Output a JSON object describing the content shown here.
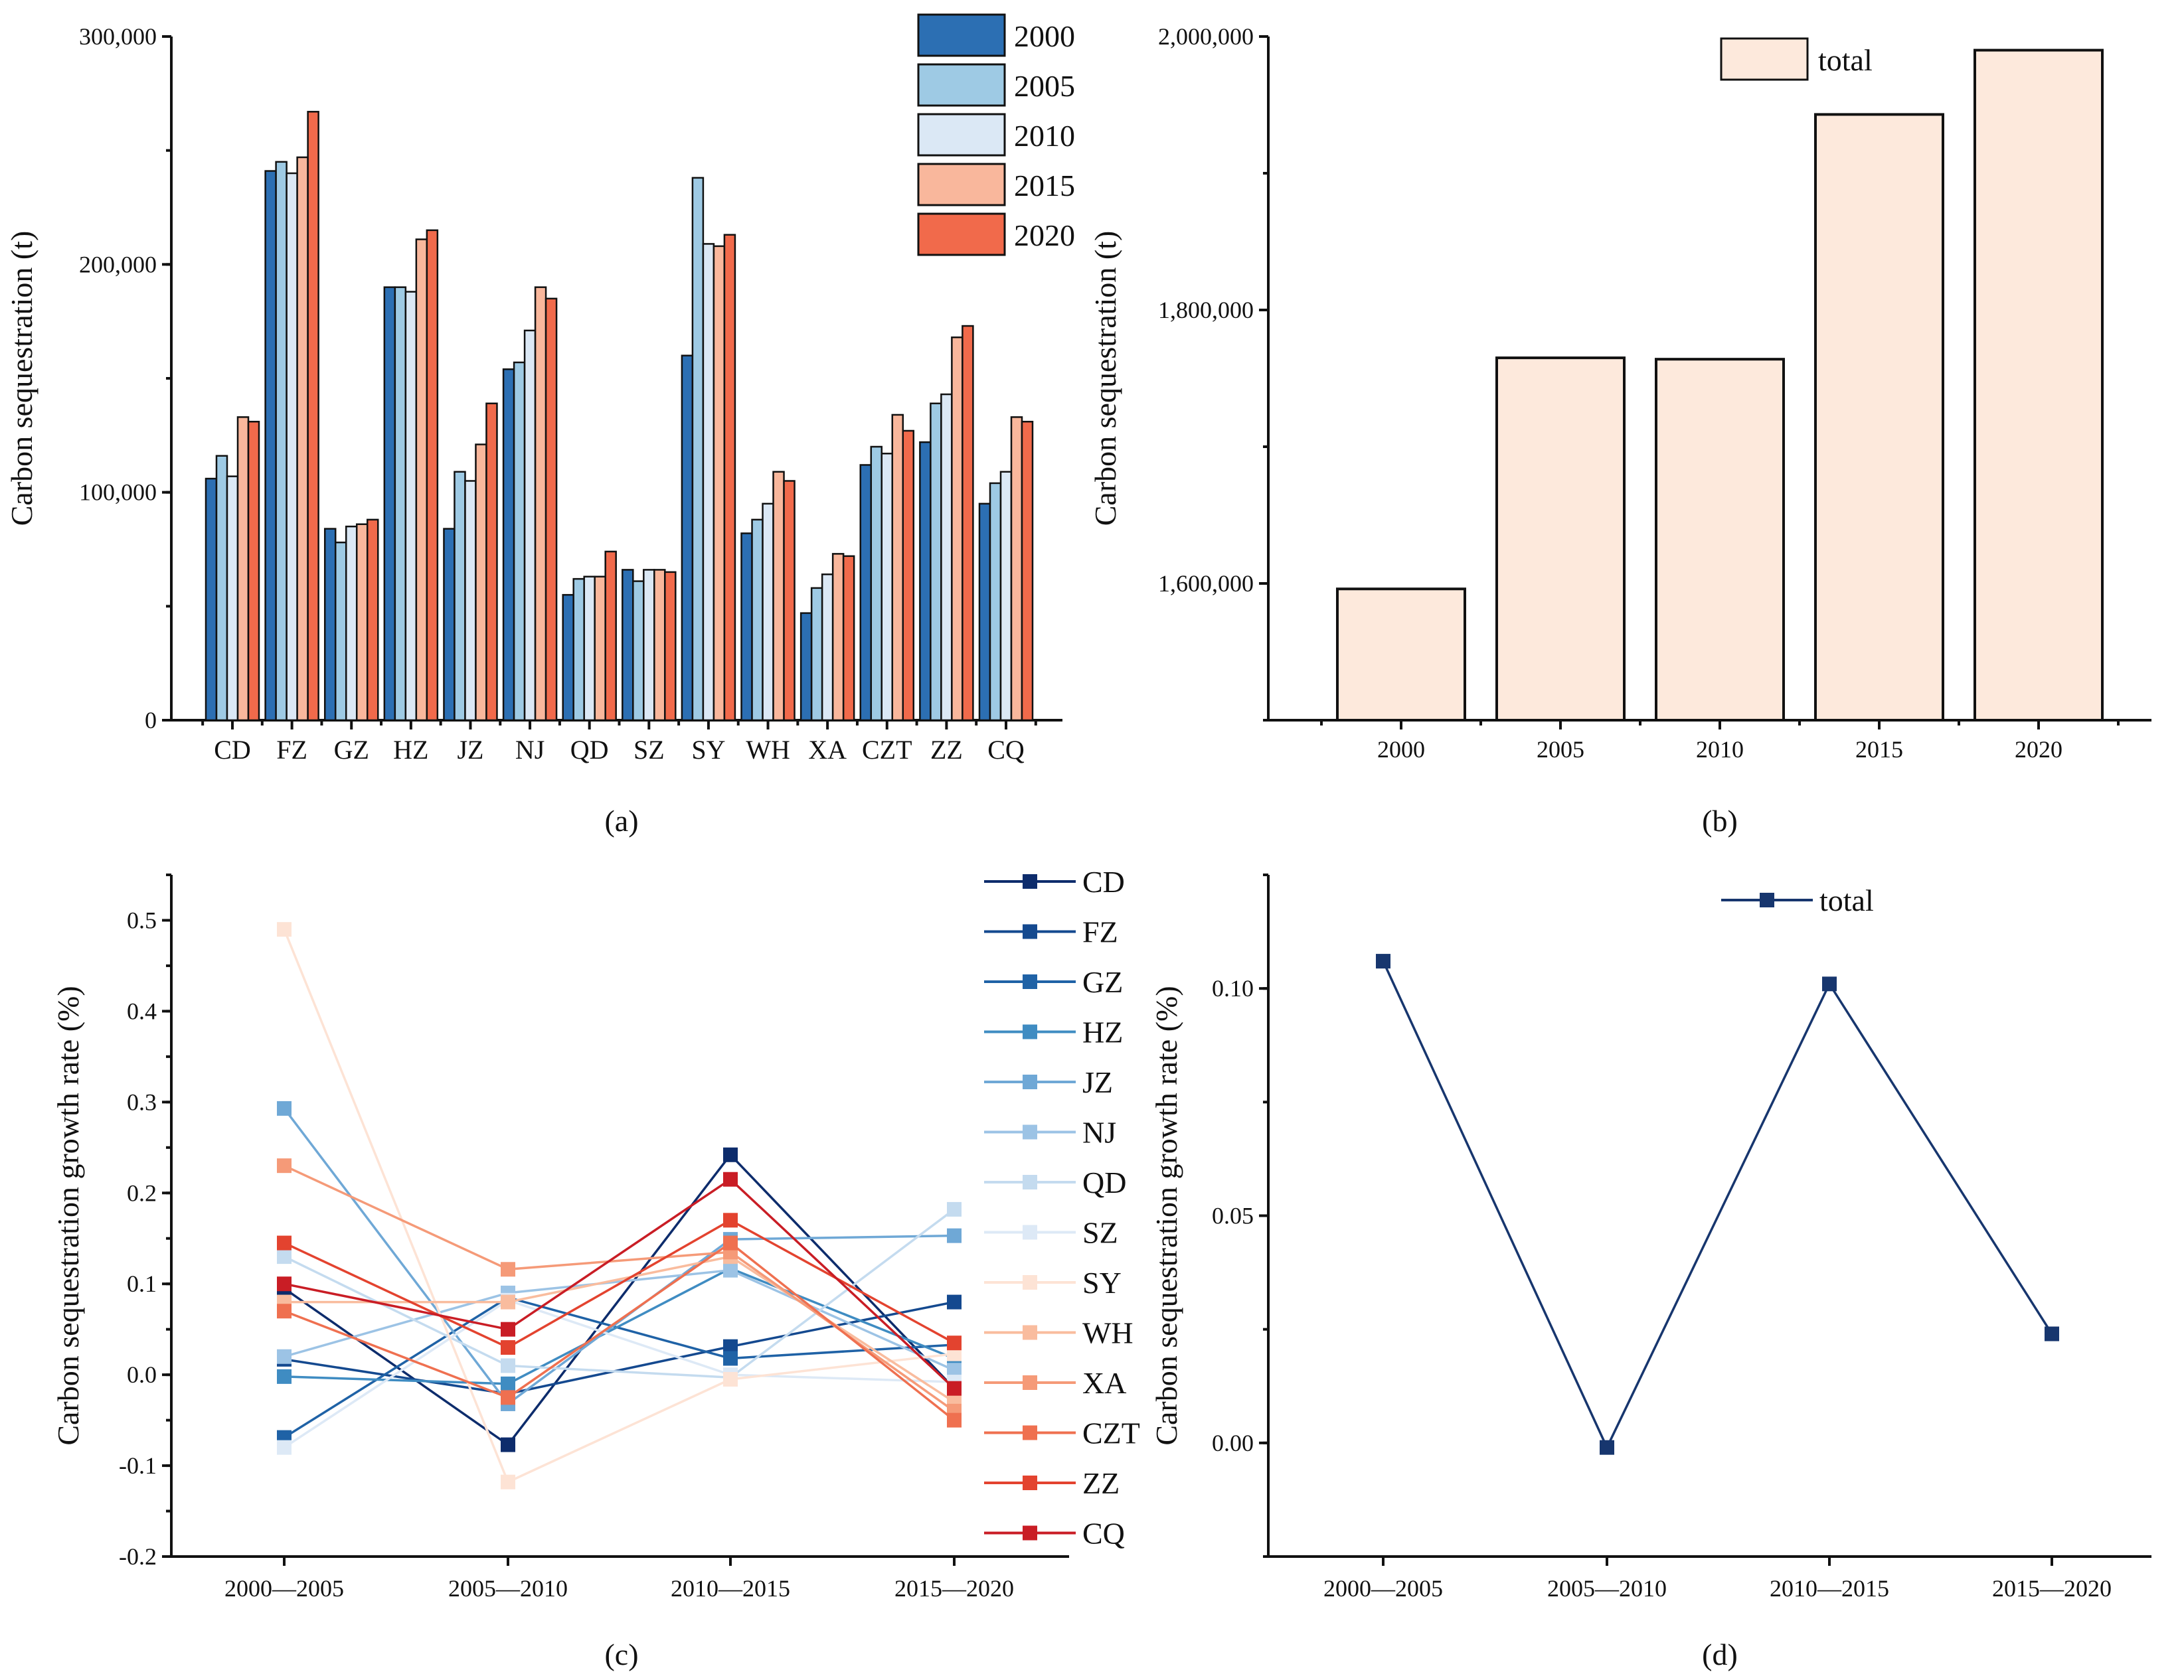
{
  "chart_data": [
    {
      "panel": "(a)",
      "type": "bar",
      "ylabel": "Carbon sequestration (t)",
      "xlabel": "",
      "ylim": [
        0,
        300000
      ],
      "yticks": [
        0,
        100000,
        200000,
        300000
      ],
      "ytick_labels": [
        "0",
        "100,000",
        "200,000",
        "300,000"
      ],
      "categories": [
        "CD",
        "FZ",
        "GZ",
        "HZ",
        "JZ",
        "NJ",
        "QD",
        "SZ",
        "SY",
        "WH",
        "XA",
        "CZT",
        "ZZ",
        "CQ"
      ],
      "series": [
        {
          "name": "2000",
          "color": "#2c6fb3",
          "values": [
            106000,
            241000,
            84000,
            190000,
            84000,
            154000,
            55000,
            66000,
            160000,
            82000,
            47000,
            112000,
            122000,
            95000
          ]
        },
        {
          "name": "2005",
          "color": "#9ecae4",
          "values": [
            116000,
            245000,
            78000,
            190000,
            109000,
            157000,
            62000,
            61000,
            238000,
            88000,
            58000,
            120000,
            139000,
            104000
          ]
        },
        {
          "name": "2010",
          "color": "#dbe8f5",
          "values": [
            107000,
            240000,
            85000,
            188000,
            105000,
            171000,
            63000,
            66000,
            209000,
            95000,
            64000,
            117000,
            143000,
            109000
          ]
        },
        {
          "name": "2015",
          "color": "#f9b79c",
          "values": [
            133000,
            247000,
            86000,
            211000,
            121000,
            190000,
            63000,
            66000,
            208000,
            109000,
            73000,
            134000,
            168000,
            133000
          ]
        },
        {
          "name": "2020",
          "color": "#f16a4b",
          "values": [
            131000,
            267000,
            88000,
            215000,
            139000,
            185000,
            74000,
            65000,
            213000,
            105000,
            72000,
            127000,
            173000,
            131000
          ]
        }
      ],
      "legend": "top-right"
    },
    {
      "panel": "(b)",
      "type": "bar",
      "ylabel": "Carbon sequestration (t)",
      "xlabel": "",
      "ylim": [
        1500000,
        2000000
      ],
      "yticks": [
        1600000,
        1800000,
        2000000
      ],
      "ytick_labels": [
        "1,600,000",
        "1,800,000",
        "2,000,000"
      ],
      "categories": [
        "2000",
        "2005",
        "2010",
        "2015",
        "2020"
      ],
      "series": [
        {
          "name": "total",
          "color": "#fde9dc",
          "values": [
            1596000,
            1765000,
            1764000,
            1943000,
            1990000
          ]
        }
      ],
      "legend": "top-right"
    },
    {
      "panel": "(c)",
      "type": "line",
      "ylabel": "Carbon sequestration growth rate (%)",
      "xlabel": "",
      "ylim": [
        -0.2,
        0.55
      ],
      "yticks": [
        -0.2,
        -0.1,
        0.0,
        0.1,
        0.2,
        0.3,
        0.4,
        0.5
      ],
      "ytick_labels": [
        "-0.2",
        "-0.1",
        "0.0",
        "0.1",
        "0.2",
        "0.3",
        "0.4",
        "0.5"
      ],
      "categories": [
        "2000—2005",
        "2005—2010",
        "2010—2015",
        "2015—2020"
      ],
      "series": [
        {
          "name": "CD",
          "color": "#0d2c6c",
          "values": [
            0.095,
            -0.077,
            0.242,
            -0.015
          ]
        },
        {
          "name": "FZ",
          "color": "#14498f",
          "values": [
            0.017,
            -0.021,
            0.031,
            0.08
          ]
        },
        {
          "name": "GZ",
          "color": "#1f62a6",
          "values": [
            -0.069,
            0.085,
            0.018,
            0.033
          ]
        },
        {
          "name": "HZ",
          "color": "#3f8cc2",
          "values": [
            -0.002,
            -0.01,
            0.117,
            0.018
          ]
        },
        {
          "name": "JZ",
          "color": "#6fa8d6",
          "values": [
            0.293,
            -0.032,
            0.149,
            0.153
          ]
        },
        {
          "name": "NJ",
          "color": "#9cc3e5",
          "values": [
            0.02,
            0.09,
            0.115,
            0.005
          ]
        },
        {
          "name": "QD",
          "color": "#c4dbef",
          "values": [
            0.13,
            0.01,
            -0.003,
            0.182
          ]
        },
        {
          "name": "SZ",
          "color": "#dde9f6",
          "values": [
            -0.08,
            0.082,
            0.0,
            -0.008
          ]
        },
        {
          "name": "SY",
          "color": "#fde3d5",
          "values": [
            0.49,
            -0.118,
            -0.005,
            0.023
          ]
        },
        {
          "name": "WH",
          "color": "#f9bc9e",
          "values": [
            0.08,
            0.08,
            0.13,
            -0.03
          ]
        },
        {
          "name": "XA",
          "color": "#f59a78",
          "values": [
            0.23,
            0.116,
            0.135,
            -0.04
          ]
        },
        {
          "name": "CZT",
          "color": "#ef7050",
          "values": [
            0.07,
            -0.025,
            0.145,
            -0.05
          ]
        },
        {
          "name": "ZZ",
          "color": "#e3432f",
          "values": [
            0.145,
            0.03,
            0.17,
            0.035
          ]
        },
        {
          "name": "CQ",
          "color": "#c91d25",
          "values": [
            0.1,
            0.05,
            0.215,
            -0.015
          ]
        }
      ],
      "legend": "right"
    },
    {
      "panel": "(d)",
      "type": "line",
      "ylabel": "Carbon sequestration growth rate (%)",
      "xlabel": "",
      "ylim": [
        -0.025,
        0.125
      ],
      "yticks": [
        0.0,
        0.05,
        0.1
      ],
      "ytick_labels": [
        "0.00",
        "0.05",
        "0.10"
      ],
      "categories": [
        "2000—2005",
        "2005—2010",
        "2010—2015",
        "2015—2020"
      ],
      "series": [
        {
          "name": "total",
          "color": "#17366e",
          "values": [
            0.106,
            -0.001,
            0.101,
            0.024
          ]
        }
      ],
      "legend": "top-center"
    }
  ]
}
